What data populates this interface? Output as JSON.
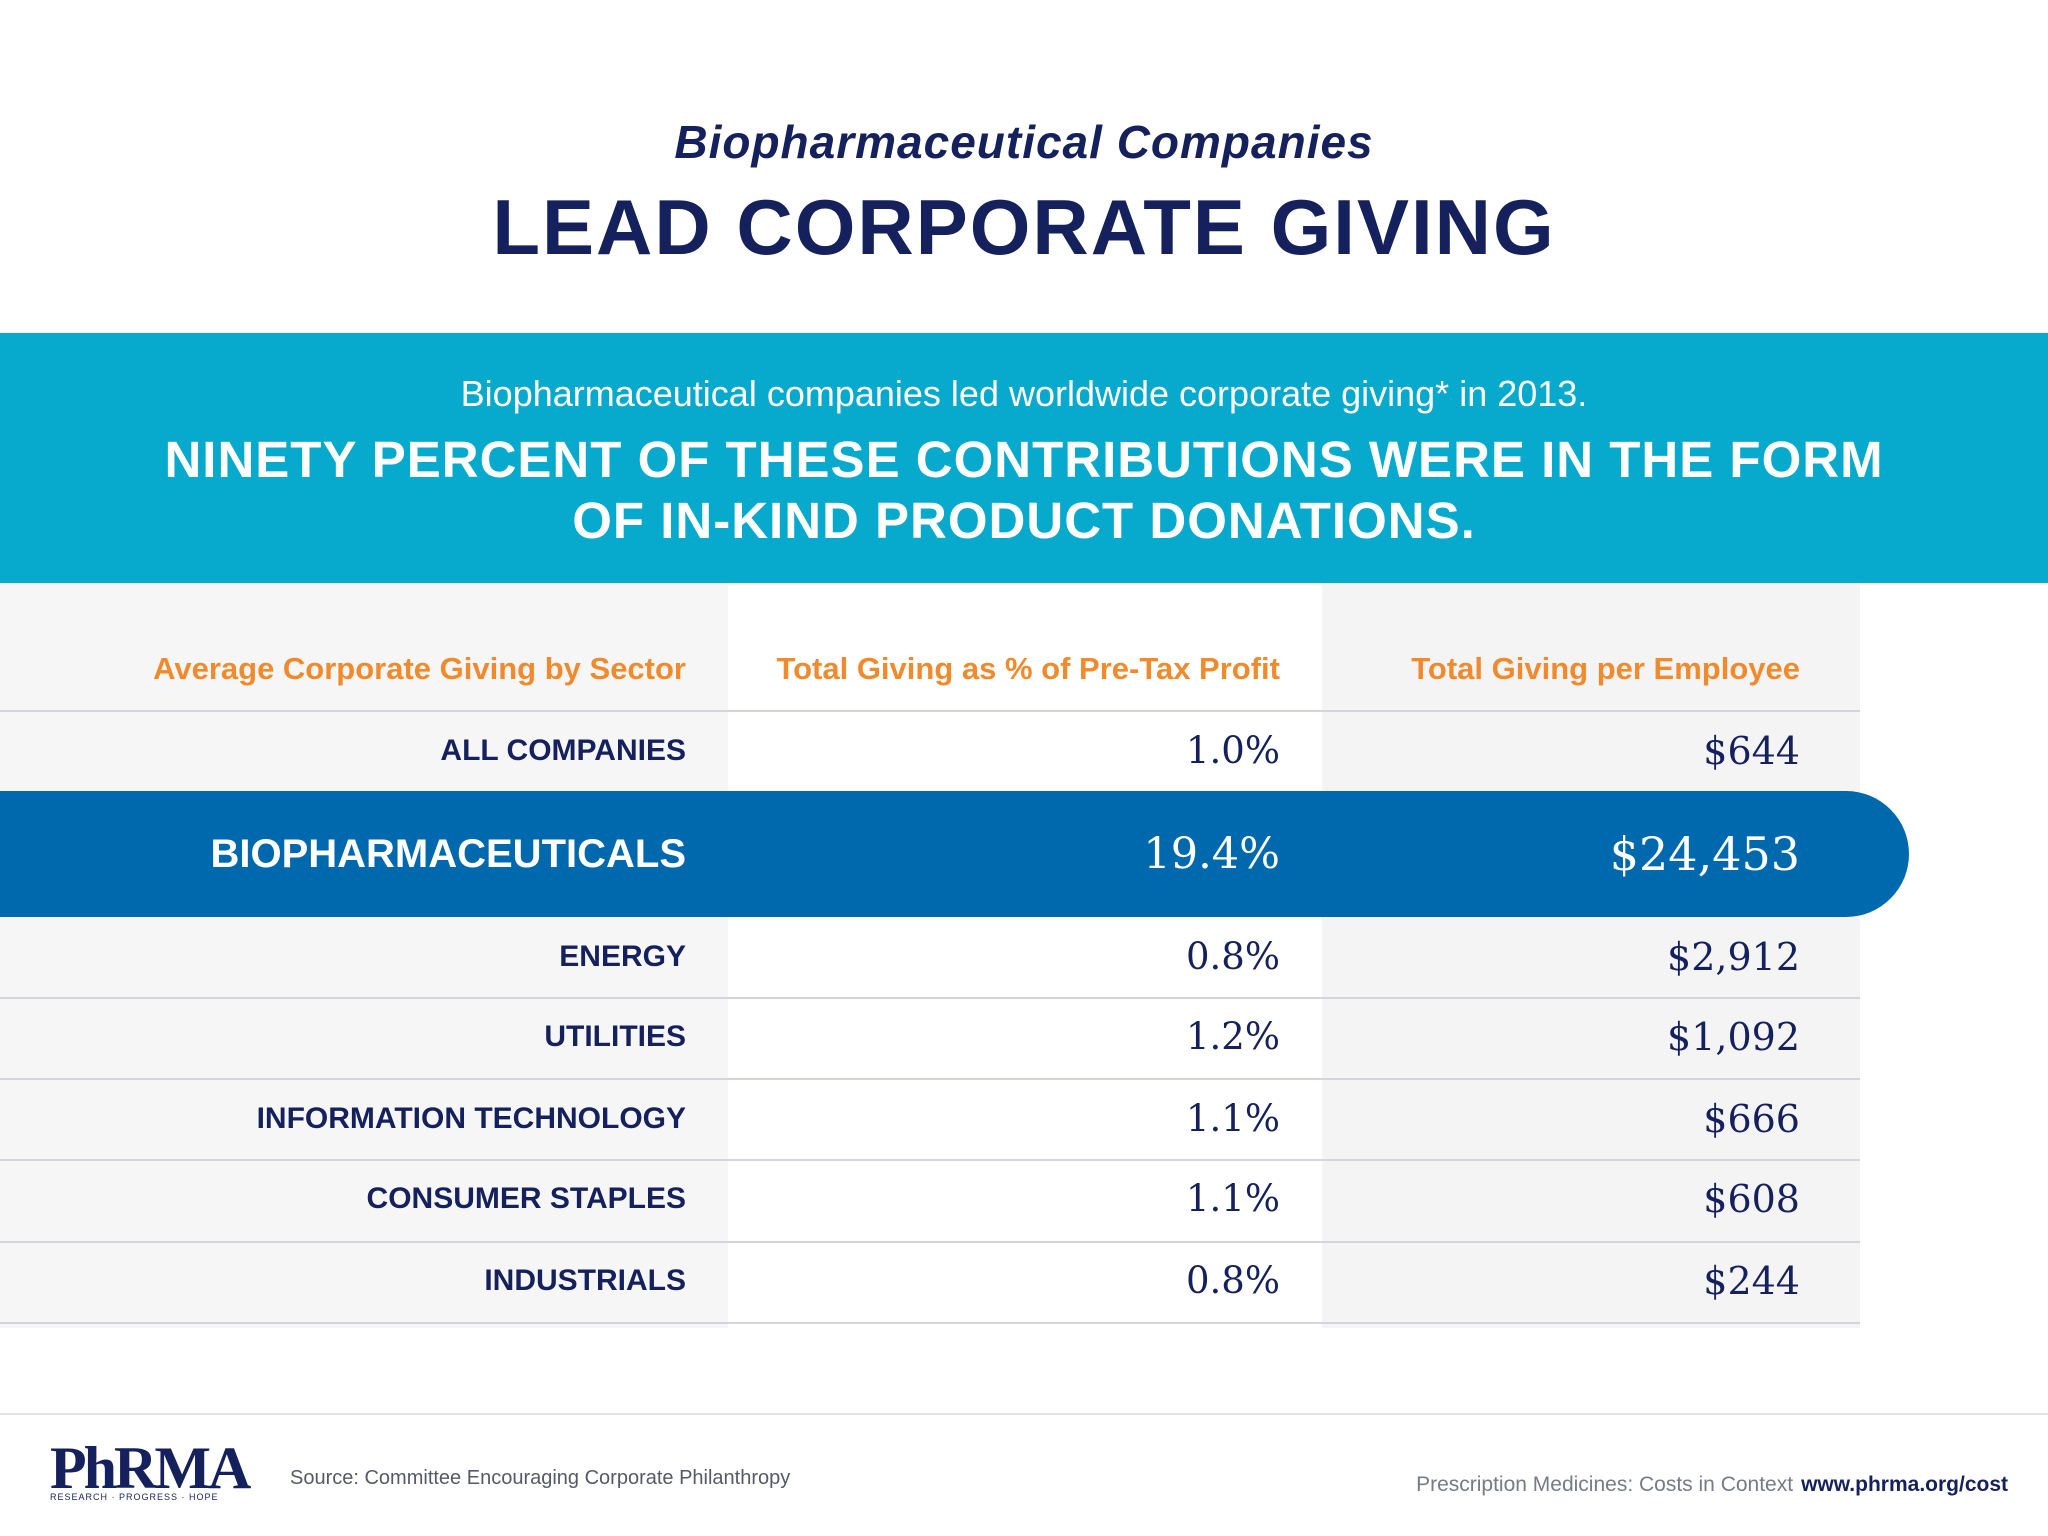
{
  "header": {
    "subtitle": "Biopharmaceutical Companies",
    "title": "LEAD CORPORATE GIVING"
  },
  "banner": {
    "intro": "Biopharmaceutical companies led worldwide corporate giving* in 2013.",
    "headline_line1": "NINETY PERCENT OF THESE CONTRIBUTIONS WERE IN THE FORM",
    "headline_line2": "OF IN-KIND PRODUCT DONATIONS."
  },
  "chart_data": {
    "type": "table",
    "columns": [
      "Average Corporate Giving by Sector",
      "Total Giving as % of Pre-Tax Profit",
      "Total Giving per Employee"
    ],
    "rows": [
      {
        "sector": "ALL COMPANIES",
        "pct_pretax": "1.0%",
        "per_employee": "$644"
      },
      {
        "sector": "BIOPHARMACEUTICALS",
        "pct_pretax": "19.4%",
        "per_employee": "$24,453",
        "highlighted": true
      },
      {
        "sector": "ENERGY",
        "pct_pretax": "0.8%",
        "per_employee": "$2,912"
      },
      {
        "sector": "UTILITIES",
        "pct_pretax": "1.2%",
        "per_employee": "$1,092"
      },
      {
        "sector": "INFORMATION TECHNOLOGY",
        "pct_pretax": "1.1%",
        "per_employee": "$666"
      },
      {
        "sector": "CONSUMER STAPLES",
        "pct_pretax": "1.1%",
        "per_employee": "$608"
      },
      {
        "sector": "INDUSTRIALS",
        "pct_pretax": "0.8%",
        "per_employee": "$244"
      }
    ]
  },
  "footer": {
    "logo_text": "PhRMA",
    "logo_tagline": "RESEARCH · PROGRESS · HOPE",
    "source": "Source: Committee Encouraging Corporate Philanthropy",
    "tagline": "Prescription Medicines: Costs in Context",
    "url": "www.phrma.org/cost"
  },
  "colors": {
    "navy": "#14215c",
    "banner": "#07a9cc",
    "highlight": "#0068ad",
    "header_orange": "#f08a2c"
  }
}
